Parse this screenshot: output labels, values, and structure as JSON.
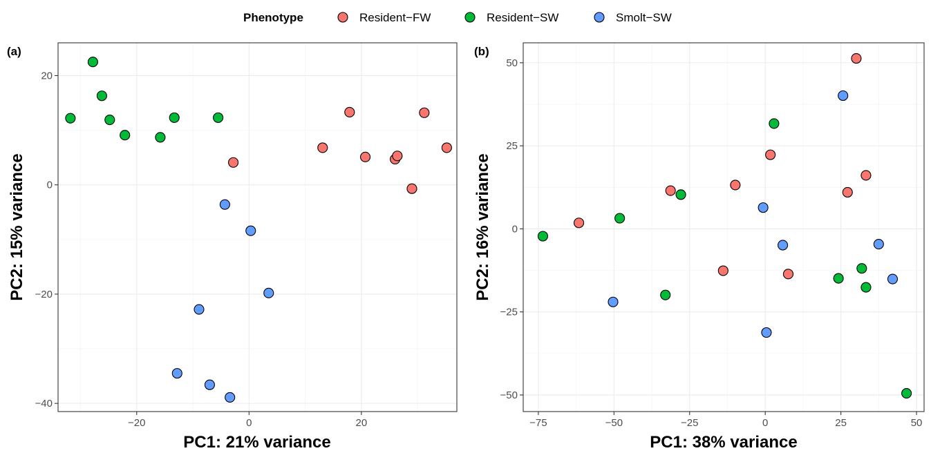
{
  "colors": {
    "Resident-FW": "#F8766D",
    "Resident-SW": "#00BA38",
    "Smolt-SW": "#619CFF"
  },
  "legend": {
    "title": "Phenotype",
    "items": [
      {
        "label": "Resident−FW",
        "key": "Resident-FW"
      },
      {
        "label": "Resident−SW",
        "key": "Resident-SW"
      },
      {
        "label": "Smolt−SW",
        "key": "Smolt-SW"
      }
    ]
  },
  "chart_data": [
    {
      "type": "scatter",
      "panel_label": "(a)",
      "xlabel": "PC1: 21% variance",
      "ylabel": "PC2: 15% variance",
      "xlim": [
        -34,
        37
      ],
      "ylim": [
        -41.5,
        26
      ],
      "xticks": [
        -20,
        0,
        20
      ],
      "yticks": [
        -40,
        -20,
        0,
        20
      ],
      "tick_labels_x": [
        "−20",
        "0",
        "20"
      ],
      "tick_labels_y": [
        "−40",
        "−20",
        "0",
        "20"
      ],
      "grid": true,
      "series": [
        {
          "name": "Resident-FW",
          "points": [
            [
              -2.8,
              4.1
            ],
            [
              13.1,
              6.8
            ],
            [
              17.9,
              13.3
            ],
            [
              20.7,
              5.1
            ],
            [
              26.0,
              4.7
            ],
            [
              26.4,
              5.3
            ],
            [
              29.0,
              -0.7
            ],
            [
              31.2,
              13.2
            ],
            [
              35.2,
              6.8
            ]
          ]
        },
        {
          "name": "Resident-SW",
          "points": [
            [
              -31.8,
              12.2
            ],
            [
              -27.8,
              22.5
            ],
            [
              -26.2,
              16.3
            ],
            [
              -24.8,
              11.9
            ],
            [
              -22.1,
              9.1
            ],
            [
              -15.8,
              8.7
            ],
            [
              -13.3,
              12.3
            ],
            [
              -5.5,
              12.3
            ]
          ]
        },
        {
          "name": "Smolt-SW",
          "points": [
            [
              -4.3,
              -3.6
            ],
            [
              0.3,
              -8.4
            ],
            [
              3.5,
              -19.8
            ],
            [
              -8.9,
              -22.8
            ],
            [
              -12.8,
              -34.5
            ],
            [
              -7.0,
              -36.6
            ],
            [
              -3.4,
              -38.9
            ]
          ]
        }
      ]
    },
    {
      "type": "scatter",
      "panel_label": "(b)",
      "xlabel": "PC1: 38% variance",
      "ylabel": "PC2: 16% variance",
      "xlim": [
        -80,
        52.5
      ],
      "ylim": [
        -55,
        56
      ],
      "xticks": [
        -75,
        -50,
        -25,
        0,
        25,
        50
      ],
      "yticks": [
        -50,
        -25,
        0,
        25,
        50
      ],
      "tick_labels_x": [
        "−75",
        "−50",
        "−25",
        "0",
        "25",
        "50"
      ],
      "tick_labels_y": [
        "−50",
        "−25",
        "0",
        "25",
        "50"
      ],
      "grid": true,
      "series": [
        {
          "name": "Resident-FW",
          "points": [
            [
              -61.6,
              1.8
            ],
            [
              -31.3,
              11.5
            ],
            [
              -9.9,
              13.2
            ],
            [
              1.7,
              22.3
            ],
            [
              -13.9,
              -12.6
            ],
            [
              7.6,
              -13.6
            ],
            [
              27.2,
              11.0
            ],
            [
              30.1,
              51.3
            ],
            [
              33.3,
              16.1
            ]
          ]
        },
        {
          "name": "Resident-SW",
          "points": [
            [
              -73.5,
              -2.2
            ],
            [
              -48.1,
              3.2
            ],
            [
              -27.9,
              10.3
            ],
            [
              -33.0,
              -19.9
            ],
            [
              2.9,
              31.7
            ],
            [
              24.2,
              -14.9
            ],
            [
              31.9,
              -11.9
            ],
            [
              33.3,
              -17.6
            ],
            [
              46.7,
              -49.5
            ]
          ]
        },
        {
          "name": "Smolt-SW",
          "points": [
            [
              -50.3,
              -22.0
            ],
            [
              -0.7,
              6.4
            ],
            [
              5.8,
              -4.9
            ],
            [
              0.4,
              -31.2
            ],
            [
              25.7,
              40.1
            ],
            [
              37.5,
              -4.6
            ],
            [
              42.1,
              -15.1
            ]
          ]
        }
      ]
    }
  ]
}
